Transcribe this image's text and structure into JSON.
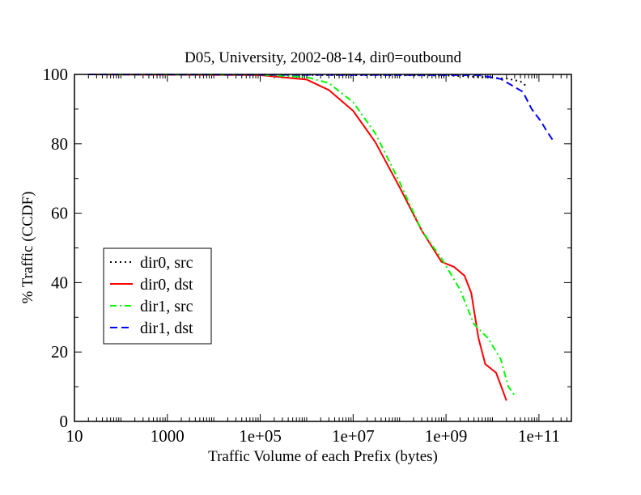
{
  "chart_data": {
    "type": "line",
    "title": "D05, University, 2002-08-14, dir0=outbound",
    "xlabel": "Traffic Volume of each Prefix (bytes)",
    "ylabel": "% Traffic (CCDF)",
    "x_scale": "log",
    "xlim": [
      10,
      500000000000
    ],
    "ylim": [
      0,
      100
    ],
    "x_ticks": [
      {
        "value": 10,
        "label": "10"
      },
      {
        "value": 1000,
        "label": "1000"
      },
      {
        "value": 100000,
        "label": "1e+05"
      },
      {
        "value": 10000000,
        "label": "1e+07"
      },
      {
        "value": 1000000000,
        "label": "1e+09"
      },
      {
        "value": 100000000000,
        "label": "1e+11"
      }
    ],
    "y_ticks": [
      {
        "value": 0,
        "label": "0"
      },
      {
        "value": 20,
        "label": "20"
      },
      {
        "value": 40,
        "label": "40"
      },
      {
        "value": 60,
        "label": "60"
      },
      {
        "value": 80,
        "label": "80"
      },
      {
        "value": 100,
        "label": "100"
      }
    ],
    "grid": false,
    "legend_position": "center-left",
    "series": [
      {
        "name": "dir0, src",
        "color": "#000000",
        "style": "dotted",
        "points": [
          [
            20,
            100
          ],
          [
            1000000000,
            99.7
          ],
          [
            5000000000,
            99.3
          ],
          [
            20000000000,
            98.8
          ],
          [
            40000000000,
            98.0
          ],
          [
            55000000000,
            96.5
          ]
        ]
      },
      {
        "name": "dir0, dst",
        "color": "#ff0000",
        "style": "solid",
        "points": [
          [
            20,
            100
          ],
          [
            100000,
            99.8
          ],
          [
            1000000,
            98.5
          ],
          [
            3000000,
            95.5
          ],
          [
            10000000,
            89.5
          ],
          [
            30000000,
            80.5
          ],
          [
            100000000,
            67.5
          ],
          [
            300000000,
            55
          ],
          [
            800000000,
            46
          ],
          [
            1500000000,
            44.5
          ],
          [
            2500000000,
            42
          ],
          [
            3500000000,
            37
          ],
          [
            5000000000,
            24
          ],
          [
            7000000000,
            16.5
          ],
          [
            12000000000,
            14
          ],
          [
            20000000000,
            6
          ]
        ]
      },
      {
        "name": "dir1, src",
        "color": "#00ff00",
        "style": "dashdot",
        "points": [
          [
            20,
            100
          ],
          [
            100000,
            99.9
          ],
          [
            1000000,
            99.2
          ],
          [
            3000000,
            97.5
          ],
          [
            10000000,
            92
          ],
          [
            30000000,
            83
          ],
          [
            100000000,
            69
          ],
          [
            300000000,
            55
          ],
          [
            800000000,
            47
          ],
          [
            2000000000,
            38
          ],
          [
            4000000000,
            28
          ],
          [
            8000000000,
            24
          ],
          [
            15000000000,
            18
          ],
          [
            22000000000,
            10
          ],
          [
            30000000000,
            7.5
          ]
        ]
      },
      {
        "name": "dir1, dst",
        "color": "#0000ff",
        "style": "dashed",
        "points": [
          [
            20,
            100
          ],
          [
            5000000000,
            99.8
          ],
          [
            15000000000,
            98.7
          ],
          [
            25000000000,
            97.0
          ],
          [
            45000000000,
            95.0
          ],
          [
            70000000000,
            90.0
          ],
          [
            110000000000,
            86.5
          ],
          [
            150000000000,
            83.5
          ],
          [
            200000000000,
            81.0
          ]
        ]
      }
    ]
  }
}
